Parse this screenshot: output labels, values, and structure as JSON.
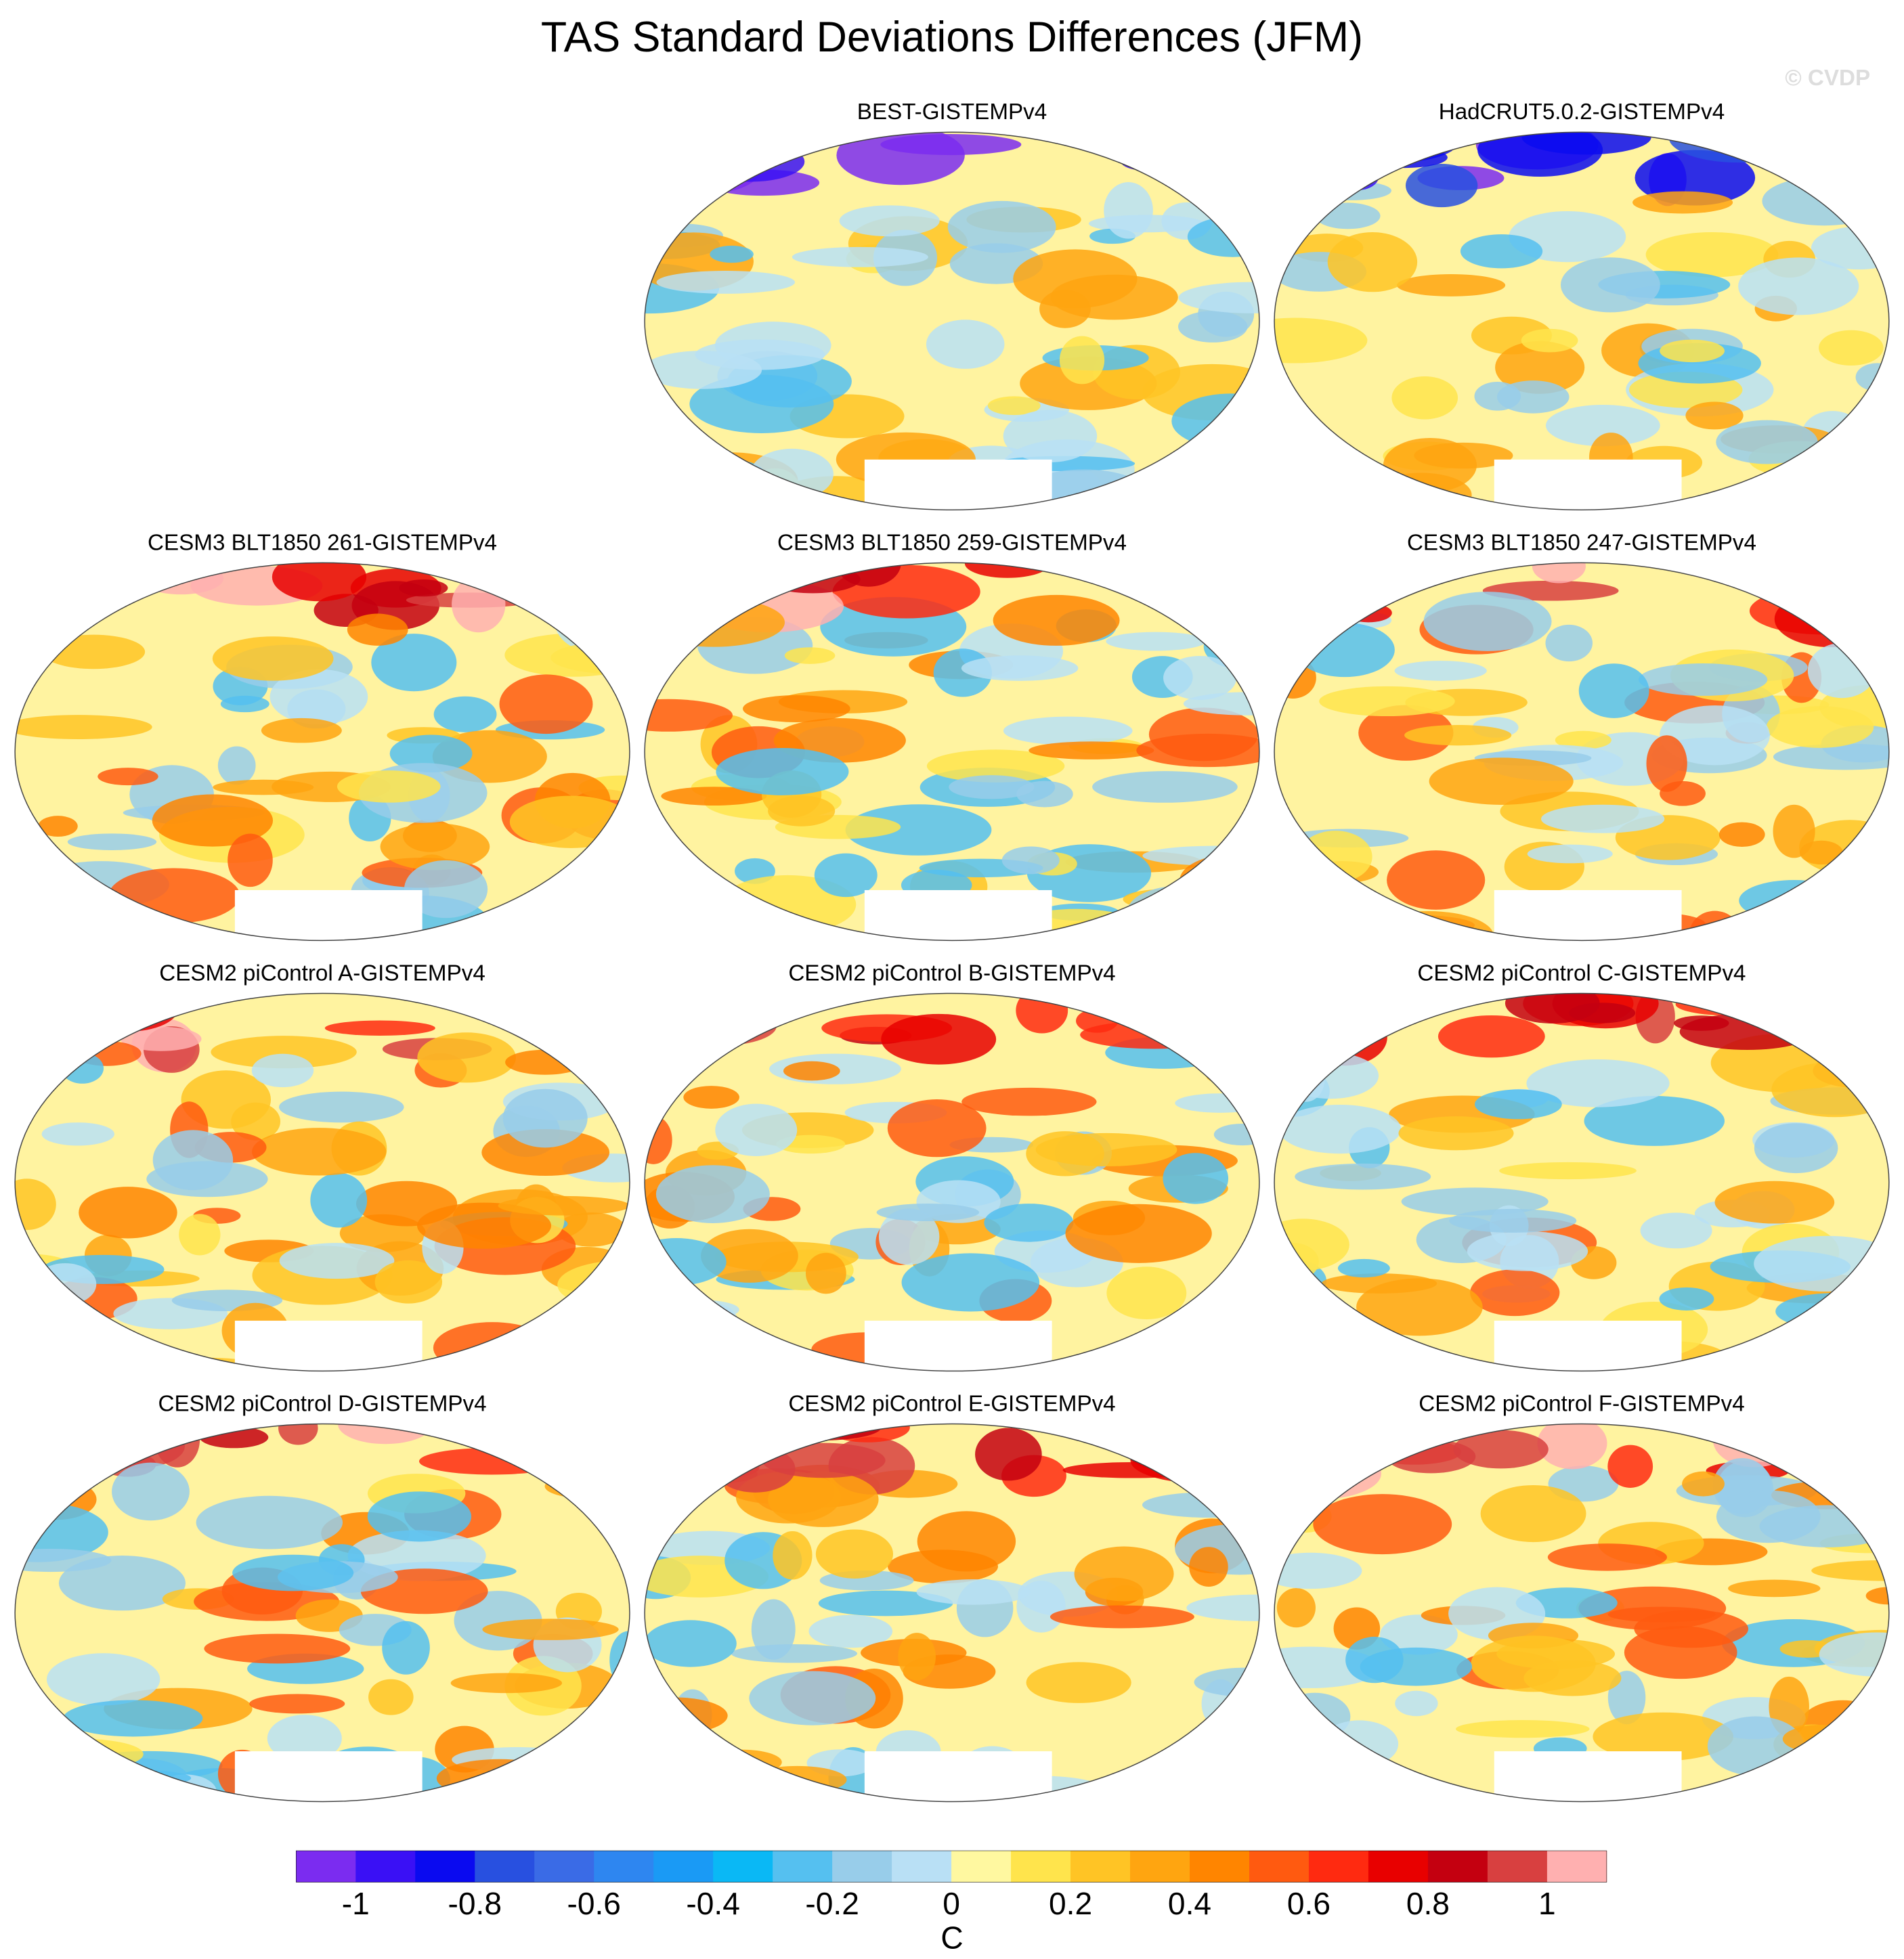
{
  "chart_data": {
    "type": "map-panels",
    "title": "TAS Standard Deviations Differences (JFM)",
    "watermark": "© CVDP",
    "panels": [
      {
        "title": "BEST-GISTEMPv4"
      },
      {
        "title": "HadCRUT5.0.2-GISTEMPv4"
      },
      {
        "title": "CESM3 BLT1850 261-GISTEMPv4"
      },
      {
        "title": "CESM3 BLT1850 259-GISTEMPv4"
      },
      {
        "title": "CESM3 BLT1850 247-GISTEMPv4"
      },
      {
        "title": "CESM2 piControl A-GISTEMPv4"
      },
      {
        "title": "CESM2 piControl B-GISTEMPv4"
      },
      {
        "title": "CESM2 piControl C-GISTEMPv4"
      },
      {
        "title": "CESM2 piControl D-GISTEMPv4"
      },
      {
        "title": "CESM2 piControl E-GISTEMPv4"
      },
      {
        "title": "CESM2 piControl F-GISTEMPv4"
      }
    ],
    "colorbar": {
      "label": "C",
      "xlim": [
        -1.1,
        1.1
      ],
      "xticks": [
        -1,
        -0.8,
        -0.6,
        -0.4,
        -0.2,
        0,
        0.2,
        0.4,
        0.6,
        0.8,
        1
      ],
      "colors": [
        "#7b2cf0",
        "#3a10f5",
        "#0a0af0",
        "#2850e0",
        "#3a6be6",
        "#2e86f0",
        "#1a9af5",
        "#0ab8f5",
        "#55c0f0",
        "#98cdea",
        "#b9e0f5",
        "#fff8a0",
        "#ffe44c",
        "#ffc425",
        "#ffa510",
        "#ff8500",
        "#ff5a10",
        "#ff2a10",
        "#e80000",
        "#c40010",
        "#d84040",
        "#ffb0b0"
      ]
    }
  }
}
